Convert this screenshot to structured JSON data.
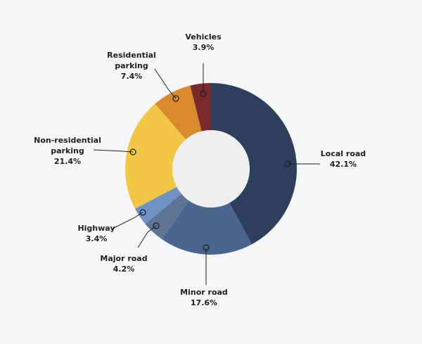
{
  "chart_data": {
    "type": "pie",
    "style": "donut",
    "title": "",
    "start_angle_deg": 0,
    "direction": "clockwise",
    "slices": [
      {
        "label_lines": [
          "Local road"
        ],
        "value_text": "42.1%",
        "value": 42.1,
        "color": "#2d3f5c"
      },
      {
        "label_lines": [
          "Minor road"
        ],
        "value_text": "17.6%",
        "value": 17.6,
        "color": "#4a6590"
      },
      {
        "label_lines": [
          "Major road"
        ],
        "value_text": "4.2%",
        "value": 4.2,
        "color": "#5e7493"
      },
      {
        "label_lines": [
          "Highway"
        ],
        "value_text": "3.4%",
        "value": 3.4,
        "color": "#6f93c4"
      },
      {
        "label_lines": [
          "Non-residential",
          "parking"
        ],
        "value_text": "21.4%",
        "value": 21.4,
        "color": "#f2c744"
      },
      {
        "label_lines": [
          "Residential",
          "parking"
        ],
        "value_text": "7.4%",
        "value": 7.4,
        "color": "#d88a2c"
      },
      {
        "label_lines": [
          "Vehicles"
        ],
        "value_text": "3.9%",
        "value": 3.9,
        "color": "#7a2a2a"
      }
    ],
    "hole_color": "#efefef",
    "background": "#f5f6f8"
  }
}
